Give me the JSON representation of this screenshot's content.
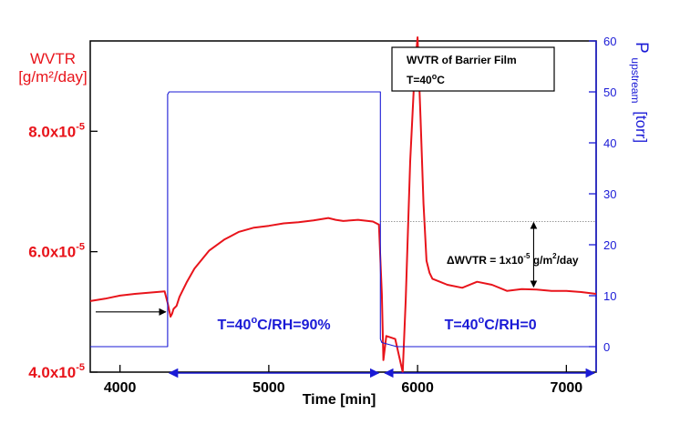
{
  "chart_data": {
    "type": "line",
    "title": "",
    "xlabel": "Time [min]",
    "ylabel_left": {
      "line1": "WVTR",
      "line2": "[g/m²/day]"
    },
    "ylabel_right": {
      "symbol": "P",
      "subscript": "upstream",
      "unit": "[torr]"
    },
    "xlim": [
      3800,
      7200
    ],
    "ylim_left": [
      4e-05,
      9.5e-05
    ],
    "ylim_right": [
      -5,
      60
    ],
    "x_ticks": [
      4000,
      5000,
      6000,
      7000
    ],
    "y_left_ticks": [
      {
        "value": 4e-05,
        "mantissa": "4.0x10",
        "exponent": "-5"
      },
      {
        "value": 6e-05,
        "mantissa": "6.0x10",
        "exponent": "-5"
      },
      {
        "value": 8e-05,
        "mantissa": "8.0x10",
        "exponent": "-5"
      }
    ],
    "y_right_ticks": [
      0,
      10,
      20,
      30,
      40,
      50,
      60
    ],
    "grid": false,
    "legend_box": {
      "line1": "WVTR of Barrier Film",
      "line2_prefix": "T=40",
      "line2_sup": "o",
      "line2_suffix": "C"
    },
    "colors": {
      "wvtr": "#e8141b",
      "pressure": "#1a1ad6",
      "axis": "#000000"
    },
    "series": [
      {
        "name": "WVTR",
        "axis": "left",
        "x": [
          3800,
          3900,
          4000,
          4100,
          4200,
          4300,
          4320,
          4340,
          4350,
          4360,
          4380,
          4400,
          4450,
          4500,
          4600,
          4700,
          4800,
          4900,
          5000,
          5100,
          5200,
          5300,
          5400,
          5450,
          5500,
          5600,
          5700,
          5740,
          5760,
          5770,
          5790,
          5850,
          5900,
          5920,
          5950,
          5980,
          6000,
          6020,
          6040,
          6060,
          6080,
          6100,
          6150,
          6200,
          6300,
          6400,
          6500,
          6600,
          6700,
          6800,
          6900,
          7000,
          7100,
          7200
        ],
        "y": [
          5.18e-05,
          5.22e-05,
          5.27e-05,
          5.3e-05,
          5.32e-05,
          5.34e-05,
          5.15e-05,
          4.92e-05,
          4.97e-05,
          5.05e-05,
          5.1e-05,
          5.25e-05,
          5.5e-05,
          5.72e-05,
          6.02e-05,
          6.2e-05,
          6.33e-05,
          6.4e-05,
          6.43e-05,
          6.47e-05,
          6.49e-05,
          6.52e-05,
          6.56e-05,
          6.53e-05,
          6.51e-05,
          6.53e-05,
          6.5e-05,
          6.45e-05,
          5.3e-05,
          4.2e-05,
          4.6e-05,
          4.55e-05,
          3.8e-05,
          5.2e-05,
          7.5e-05,
          9e-05,
          9.6e-05,
          8.2e-05,
          6.8e-05,
          5.85e-05,
          5.65e-05,
          5.55e-05,
          5.5e-05,
          5.45e-05,
          5.4e-05,
          5.5e-05,
          5.45e-05,
          5.35e-05,
          5.38e-05,
          5.37e-05,
          5.35e-05,
          5.35e-05,
          5.33e-05,
          5.3e-05
        ]
      },
      {
        "name": "P upstream",
        "axis": "right",
        "x": [
          3800,
          4320,
          4320,
          4330,
          5750,
          5750,
          5760,
          5860,
          7200
        ],
        "y": [
          0,
          0,
          49.5,
          50,
          50,
          1.5,
          0.8,
          0,
          0
        ]
      }
    ],
    "annotations": {
      "band_1": {
        "prefix": "T=40",
        "sup": "o",
        "suffix": "C/RH=90%",
        "x_from": 4320,
        "x_to": 5750
      },
      "band_2": {
        "prefix": "T=40",
        "sup": "o",
        "suffix": "C/RH=0",
        "x_from": 5780,
        "x_to": 7200
      },
      "delta": {
        "prefix": "ΔWVTR = 1x10",
        "sup": "-5",
        "suffix": " g/m",
        "sup2": "2",
        "suffix2": "/day",
        "x": 6780,
        "y_top": 6.5e-05,
        "y_bottom": 5.4e-05
      },
      "reference_level": 6.5e-05,
      "start_arrow_y": 5e-05
    }
  }
}
